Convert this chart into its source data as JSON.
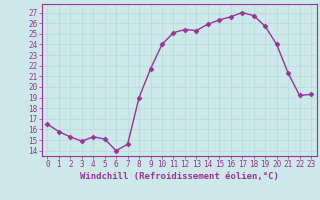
{
  "x": [
    0,
    1,
    2,
    3,
    4,
    5,
    6,
    7,
    8,
    9,
    10,
    11,
    12,
    13,
    14,
    15,
    16,
    17,
    18,
    19,
    20,
    21,
    22,
    23
  ],
  "y": [
    16.5,
    15.8,
    15.3,
    14.9,
    15.3,
    15.1,
    14.0,
    14.6,
    19.0,
    21.7,
    24.0,
    25.1,
    25.4,
    25.3,
    25.9,
    26.3,
    26.6,
    27.0,
    26.7,
    25.7,
    24.0,
    21.3,
    19.2,
    19.3
  ],
  "line_color": "#993399",
  "marker": "D",
  "markersize": 2.5,
  "linewidth": 1.0,
  "bg_color": "#cce8e8",
  "grid_color": "#bbdddd",
  "xlabel": "Windchill (Refroidissement éolien,°C)",
  "xlabel_color": "#993399",
  "ylabel_ticks": [
    14,
    15,
    16,
    17,
    18,
    19,
    20,
    21,
    22,
    23,
    24,
    25,
    26,
    27
  ],
  "ylim": [
    13.5,
    27.8
  ],
  "xlim": [
    -0.5,
    23.5
  ],
  "tick_color": "#993399",
  "tick_fontsize": 5.5,
  "xlabel_fontsize": 6.5
}
